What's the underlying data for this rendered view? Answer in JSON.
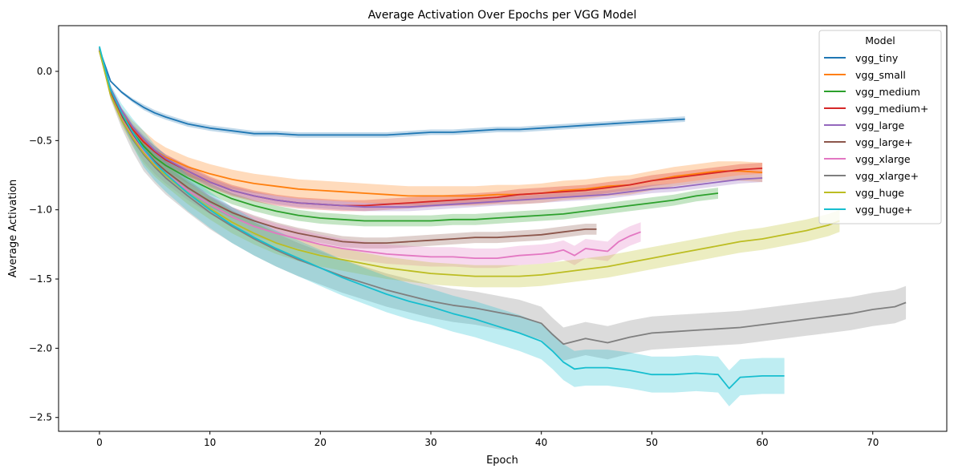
{
  "chart_data": {
    "type": "line",
    "title": "Average Activation Over Epochs per VGG Model",
    "xlabel": "Epoch",
    "ylabel": "Average Activation",
    "xlim": [
      -3.7,
      76.7
    ],
    "ylim": [
      -2.6,
      0.33
    ],
    "xticks": [
      0,
      10,
      20,
      30,
      40,
      50,
      60,
      70
    ],
    "yticks": [
      0.0,
      -0.5,
      -1.0,
      -1.5,
      -2.0,
      -2.5
    ],
    "xtick_labels": [
      "0",
      "10",
      "20",
      "30",
      "40",
      "50",
      "60",
      "70"
    ],
    "ytick_labels": [
      "0.0",
      "−0.5",
      "−1.0",
      "−1.5",
      "−2.0",
      "−2.5"
    ],
    "grid": false,
    "legend": {
      "title": "Model",
      "position": "top-right"
    },
    "series": [
      {
        "name": "vgg_tiny",
        "color": "#1f77b4",
        "x": [
          0,
          1,
          2,
          3,
          4,
          5,
          6,
          8,
          10,
          12,
          14,
          16,
          18,
          20,
          22,
          24,
          26,
          28,
          30,
          32,
          34,
          36,
          38,
          40,
          42,
          44,
          46,
          48,
          50,
          52,
          53
        ],
        "y": [
          0.16,
          -0.07,
          -0.15,
          -0.21,
          -0.26,
          -0.3,
          -0.33,
          -0.38,
          -0.41,
          -0.43,
          -0.45,
          -0.45,
          -0.46,
          -0.46,
          -0.46,
          -0.46,
          -0.46,
          -0.45,
          -0.44,
          -0.44,
          -0.43,
          -0.42,
          -0.42,
          -0.41,
          -0.4,
          -0.39,
          -0.38,
          -0.37,
          -0.36,
          -0.35,
          -0.345
        ],
        "band": 0.02
      },
      {
        "name": "vgg_small",
        "color": "#ff7f0e",
        "x": [
          0,
          1,
          2,
          3,
          4,
          5,
          6,
          8,
          10,
          12,
          14,
          16,
          18,
          20,
          22,
          24,
          26,
          28,
          30,
          32,
          34,
          36,
          38,
          40,
          42,
          44,
          46,
          48,
          50,
          52,
          54,
          56,
          58,
          60
        ],
        "y": [
          0.15,
          -0.15,
          -0.3,
          -0.41,
          -0.5,
          -0.57,
          -0.62,
          -0.69,
          -0.74,
          -0.78,
          -0.81,
          -0.83,
          -0.85,
          -0.86,
          -0.87,
          -0.88,
          -0.89,
          -0.9,
          -0.9,
          -0.9,
          -0.9,
          -0.89,
          -0.89,
          -0.88,
          -0.86,
          -0.85,
          -0.83,
          -0.82,
          -0.79,
          -0.76,
          -0.74,
          -0.72,
          -0.72,
          -0.73
        ],
        "band": 0.07
      },
      {
        "name": "vgg_medium",
        "color": "#2ca02c",
        "x": [
          0,
          1,
          2,
          3,
          4,
          5,
          6,
          8,
          10,
          12,
          14,
          16,
          18,
          20,
          22,
          24,
          26,
          28,
          30,
          32,
          34,
          36,
          38,
          40,
          42,
          44,
          46,
          48,
          50,
          52,
          54,
          56
        ],
        "y": [
          0.15,
          -0.16,
          -0.32,
          -0.44,
          -0.54,
          -0.62,
          -0.68,
          -0.77,
          -0.85,
          -0.92,
          -0.97,
          -1.01,
          -1.04,
          -1.06,
          -1.07,
          -1.08,
          -1.08,
          -1.08,
          -1.08,
          -1.07,
          -1.07,
          -1.06,
          -1.05,
          -1.04,
          -1.03,
          -1.01,
          -0.99,
          -0.97,
          -0.95,
          -0.93,
          -0.9,
          -0.88
        ],
        "band": 0.04
      },
      {
        "name": "vgg_medium+",
        "color": "#d62728",
        "x": [
          0,
          1,
          2,
          3,
          4,
          5,
          6,
          8,
          10,
          12,
          14,
          16,
          18,
          20,
          22,
          24,
          26,
          28,
          30,
          32,
          34,
          36,
          38,
          40,
          42,
          44,
          46,
          48,
          50,
          52,
          54,
          56,
          58,
          60
        ],
        "y": [
          0.15,
          -0.15,
          -0.31,
          -0.42,
          -0.51,
          -0.58,
          -0.64,
          -0.72,
          -0.8,
          -0.86,
          -0.9,
          -0.93,
          -0.95,
          -0.96,
          -0.97,
          -0.97,
          -0.96,
          -0.95,
          -0.94,
          -0.93,
          -0.92,
          -0.91,
          -0.89,
          -0.88,
          -0.87,
          -0.86,
          -0.84,
          -0.82,
          -0.79,
          -0.77,
          -0.75,
          -0.73,
          -0.71,
          -0.7
        ],
        "band": 0.04
      },
      {
        "name": "vgg_large",
        "color": "#9467bd",
        "x": [
          0,
          1,
          2,
          3,
          4,
          5,
          6,
          8,
          10,
          12,
          14,
          16,
          18,
          20,
          22,
          24,
          26,
          28,
          30,
          32,
          34,
          36,
          38,
          40,
          42,
          44,
          46,
          48,
          50,
          52,
          54,
          56,
          58,
          60
        ],
        "y": [
          0.16,
          -0.12,
          -0.28,
          -0.4,
          -0.49,
          -0.57,
          -0.63,
          -0.72,
          -0.8,
          -0.86,
          -0.9,
          -0.93,
          -0.95,
          -0.96,
          -0.97,
          -0.98,
          -0.98,
          -0.98,
          -0.97,
          -0.96,
          -0.95,
          -0.94,
          -0.93,
          -0.92,
          -0.91,
          -0.9,
          -0.89,
          -0.87,
          -0.85,
          -0.84,
          -0.82,
          -0.8,
          -0.78,
          -0.77
        ],
        "band": 0.03
      },
      {
        "name": "vgg_large+",
        "color": "#8c564b",
        "x": [
          0,
          1,
          2,
          3,
          4,
          5,
          6,
          8,
          10,
          12,
          14,
          16,
          18,
          20,
          22,
          24,
          26,
          28,
          30,
          32,
          34,
          36,
          38,
          40,
          42,
          44,
          45
        ],
        "y": [
          0.15,
          -0.16,
          -0.33,
          -0.46,
          -0.56,
          -0.65,
          -0.72,
          -0.84,
          -0.94,
          -1.02,
          -1.08,
          -1.13,
          -1.17,
          -1.2,
          -1.23,
          -1.24,
          -1.24,
          -1.23,
          -1.22,
          -1.21,
          -1.2,
          -1.2,
          -1.19,
          -1.18,
          -1.16,
          -1.14,
          -1.14
        ],
        "band": 0.04
      },
      {
        "name": "vgg_xlarge",
        "color": "#e377c2",
        "x": [
          0,
          1,
          2,
          3,
          4,
          5,
          6,
          8,
          10,
          12,
          14,
          16,
          18,
          20,
          22,
          24,
          26,
          28,
          30,
          32,
          34,
          36,
          38,
          40,
          41,
          42,
          43,
          44,
          45,
          46,
          47,
          48,
          49
        ],
        "y": [
          0.16,
          -0.17,
          -0.34,
          -0.47,
          -0.58,
          -0.67,
          -0.74,
          -0.86,
          -0.96,
          -1.05,
          -1.12,
          -1.17,
          -1.21,
          -1.25,
          -1.28,
          -1.3,
          -1.32,
          -1.33,
          -1.34,
          -1.34,
          -1.35,
          -1.35,
          -1.33,
          -1.32,
          -1.31,
          -1.29,
          -1.33,
          -1.28,
          -1.29,
          -1.3,
          -1.23,
          -1.19,
          -1.16
        ],
        "band": 0.07
      },
      {
        "name": "vgg_xlarge+",
        "color": "#7f7f7f",
        "x": [
          0,
          1,
          2,
          3,
          4,
          5,
          6,
          8,
          10,
          12,
          14,
          16,
          18,
          20,
          22,
          24,
          26,
          28,
          30,
          32,
          34,
          36,
          38,
          40,
          41,
          42,
          44,
          46,
          48,
          50,
          52,
          54,
          56,
          58,
          60,
          62,
          64,
          66,
          68,
          70,
          72,
          73
        ],
        "y": [
          0.17,
          -0.17,
          -0.35,
          -0.49,
          -0.6,
          -0.69,
          -0.77,
          -0.9,
          -1.02,
          -1.12,
          -1.21,
          -1.29,
          -1.36,
          -1.42,
          -1.48,
          -1.53,
          -1.58,
          -1.62,
          -1.66,
          -1.69,
          -1.71,
          -1.74,
          -1.77,
          -1.82,
          -1.9,
          -1.97,
          -1.93,
          -1.96,
          -1.92,
          -1.89,
          -1.88,
          -1.87,
          -1.86,
          -1.85,
          -1.83,
          -1.81,
          -1.79,
          -1.77,
          -1.75,
          -1.72,
          -1.7,
          -1.67
        ],
        "band": 0.12
      },
      {
        "name": "vgg_huge",
        "color": "#bcbd22",
        "x": [
          0,
          1,
          2,
          3,
          4,
          5,
          6,
          8,
          10,
          12,
          14,
          16,
          18,
          20,
          22,
          24,
          26,
          28,
          30,
          32,
          34,
          36,
          38,
          40,
          42,
          44,
          46,
          48,
          50,
          52,
          54,
          56,
          58,
          60,
          62,
          64,
          66,
          67
        ],
        "y": [
          0.15,
          -0.17,
          -0.35,
          -0.48,
          -0.59,
          -0.68,
          -0.75,
          -0.88,
          -0.99,
          -1.09,
          -1.17,
          -1.24,
          -1.29,
          -1.33,
          -1.36,
          -1.39,
          -1.42,
          -1.44,
          -1.46,
          -1.47,
          -1.48,
          -1.48,
          -1.48,
          -1.47,
          -1.45,
          -1.43,
          -1.41,
          -1.38,
          -1.35,
          -1.32,
          -1.29,
          -1.26,
          -1.23,
          -1.21,
          -1.18,
          -1.15,
          -1.11,
          -1.08
        ],
        "band": 0.08
      },
      {
        "name": "vgg_huge+",
        "color": "#17becf",
        "x": [
          0,
          1,
          2,
          3,
          4,
          5,
          6,
          8,
          10,
          12,
          14,
          16,
          18,
          20,
          22,
          24,
          26,
          28,
          30,
          32,
          34,
          36,
          38,
          40,
          41,
          42,
          43,
          44,
          46,
          48,
          50,
          52,
          54,
          56,
          57,
          58,
          60,
          62
        ],
        "y": [
          0.18,
          -0.13,
          -0.3,
          -0.44,
          -0.56,
          -0.66,
          -0.74,
          -0.88,
          -1.0,
          -1.11,
          -1.2,
          -1.28,
          -1.35,
          -1.42,
          -1.49,
          -1.55,
          -1.61,
          -1.66,
          -1.7,
          -1.75,
          -1.79,
          -1.84,
          -1.89,
          -1.95,
          -2.02,
          -2.1,
          -2.15,
          -2.14,
          -2.14,
          -2.16,
          -2.19,
          -2.19,
          -2.18,
          -2.19,
          -2.29,
          -2.21,
          -2.2,
          -2.2
        ],
        "band": 0.13
      }
    ]
  }
}
